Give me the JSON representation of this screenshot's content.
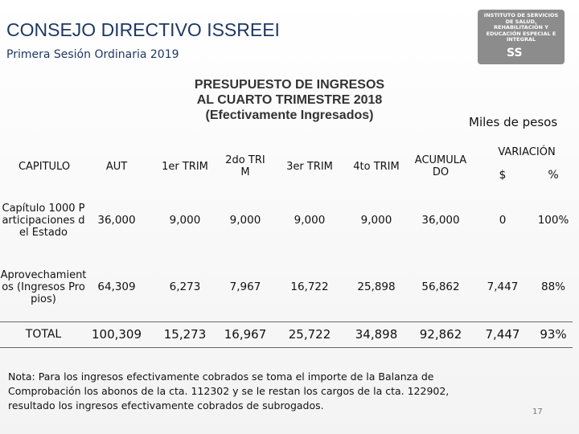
{
  "header": {
    "title": "CONSEJO DIRECTIVO ISSREEI",
    "subtitle": "Primera Sesión Ordinaria 2019",
    "logo": {
      "text": "INSTITUTO DE SERVICIOS DE SALUD, REHABILITACIÓN Y EDUCACIÓN ESPECIAL E INTEGRAL",
      "mark": "SS"
    }
  },
  "report": {
    "title_lines": [
      "PRESUPUESTO DE INGRESOS",
      "AL CUARTO TRIMESTRE 2018",
      "(Efectivamente Ingresados)"
    ],
    "units": "Miles de pesos"
  },
  "table": {
    "columns": [
      "CAPITULO",
      "AUT",
      "1er TRIM",
      "2do TRIM",
      "3er TRIM",
      "4to TRIM",
      "ACUMULADO"
    ],
    "variation": {
      "label": "VARIACIÓN",
      "columns": [
        "$",
        "%"
      ]
    },
    "rows": [
      [
        "Capítulo 1000 Participaciones del Estado",
        "36,000",
        "9,000",
        "9,000",
        "9,000",
        "9,000",
        "36,000",
        "0",
        "100%"
      ],
      [
        "Aprovechamientos (Ingresos Propios)",
        "64,309",
        "6,273",
        "7,967",
        "16,722",
        "25,898",
        "56,862",
        "7,447",
        "88%"
      ],
      [
        "TOTAL",
        "100,309",
        "15,273",
        "16,967",
        "25,722",
        "34,898",
        "92,862",
        "7,447",
        "93%"
      ]
    ]
  },
  "note": "Nota: Para los ingresos efectivamente cobrados se toma el importe de la Balanza de Comprobación los abonos de la cta. 112302 y se le restan los cargos de la cta. 122902, resultado los ingresos efectivamente cobrados de subrogados.",
  "page_number": "17"
}
